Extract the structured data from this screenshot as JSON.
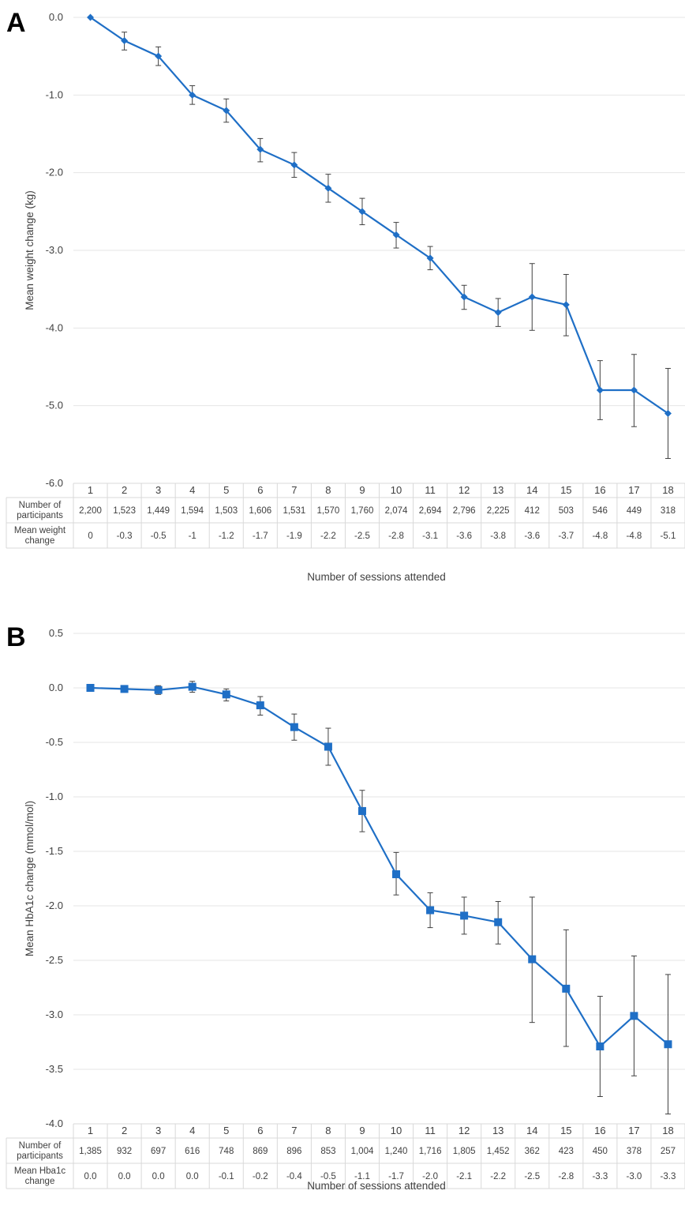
{
  "chart_data": [
    {
      "type": "line",
      "panel_label": "A",
      "ylabel": "Mean weight change (kg)",
      "xlabel": "Number of sessions attended",
      "ylim": [
        -6.0,
        0.0
      ],
      "y_ticks": [
        "0.0",
        "-1.0",
        "-2.0",
        "-3.0",
        "-4.0",
        "-5.0",
        "-6.0"
      ],
      "grid": true,
      "marker": "diamond",
      "color": "#1f6fc6",
      "categories": [
        "1",
        "2",
        "3",
        "4",
        "5",
        "6",
        "7",
        "8",
        "9",
        "10",
        "11",
        "12",
        "13",
        "14",
        "15",
        "16",
        "17",
        "18"
      ],
      "values": [
        0,
        -0.3,
        -0.5,
        -1.0,
        -1.2,
        -1.7,
        -1.9,
        -2.2,
        -2.5,
        -2.8,
        -3.1,
        -3.6,
        -3.8,
        -3.6,
        -3.7,
        -4.8,
        -4.8,
        -5.1
      ],
      "error_low": [
        0,
        -0.42,
        -0.62,
        -1.12,
        -1.35,
        -1.86,
        -2.06,
        -2.38,
        -2.67,
        -2.97,
        -3.25,
        -3.76,
        -3.98,
        -4.03,
        -4.1,
        -5.18,
        -5.27,
        -5.68
      ],
      "error_high": [
        0,
        -0.19,
        -0.38,
        -0.88,
        -1.05,
        -1.56,
        -1.74,
        -2.02,
        -2.33,
        -2.64,
        -2.95,
        -3.45,
        -3.62,
        -3.17,
        -3.31,
        -4.42,
        -4.34,
        -4.52
      ],
      "table": {
        "row1_label": [
          "Number of",
          "participants"
        ],
        "row1": [
          "2,200",
          "1,523",
          "1,449",
          "1,594",
          "1,503",
          "1,606",
          "1,531",
          "1,570",
          "1,760",
          "2,074",
          "2,694",
          "2,796",
          "2,225",
          "412",
          "503",
          "546",
          "449",
          "318"
        ],
        "row2_label": [
          "Mean weight",
          "change"
        ],
        "row2": [
          "0",
          "-0.3",
          "-0.5",
          "-1",
          "-1.2",
          "-1.7",
          "-1.9",
          "-2.2",
          "-2.5",
          "-2.8",
          "-3.1",
          "-3.6",
          "-3.8",
          "-3.6",
          "-3.7",
          "-4.8",
          "-4.8",
          "-5.1"
        ]
      }
    },
    {
      "type": "line",
      "panel_label": "B",
      "ylabel": "Mean HbA1c change (mmol/mol)",
      "xlabel": "Number of sessions attended",
      "ylim": [
        -4.0,
        0.5
      ],
      "y_ticks": [
        "0.5",
        "0.0",
        "-0.5",
        "-1.0",
        "-1.5",
        "-2.0",
        "-2.5",
        "-3.0",
        "-3.5",
        "-4.0"
      ],
      "grid": true,
      "marker": "square",
      "color": "#1f6fc6",
      "categories": [
        "1",
        "2",
        "3",
        "4",
        "5",
        "6",
        "7",
        "8",
        "9",
        "10",
        "11",
        "12",
        "13",
        "14",
        "15",
        "16",
        "17",
        "18"
      ],
      "values": [
        0.0,
        -0.01,
        -0.02,
        0.01,
        -0.06,
        -0.16,
        -0.36,
        -0.54,
        -1.13,
        -1.71,
        -2.04,
        -2.09,
        -2.15,
        -2.49,
        -2.76,
        -3.29,
        -3.01,
        -3.27
      ],
      "error_low": [
        0.0,
        -0.04,
        -0.06,
        -0.04,
        -0.12,
        -0.25,
        -0.48,
        -0.71,
        -1.32,
        -1.9,
        -2.2,
        -2.26,
        -2.35,
        -3.07,
        -3.29,
        -3.75,
        -3.56,
        -3.91
      ],
      "error_high": [
        0.0,
        0.02,
        0.02,
        0.06,
        -0.01,
        -0.08,
        -0.24,
        -0.37,
        -0.94,
        -1.51,
        -1.88,
        -1.92,
        -1.96,
        -1.92,
        -2.22,
        -2.83,
        -2.46,
        -2.63
      ],
      "table": {
        "row1_label": [
          "Number of",
          "participants"
        ],
        "row1": [
          "1,385",
          "932",
          "697",
          "616",
          "748",
          "869",
          "896",
          "853",
          "1,004",
          "1,240",
          "1,716",
          "1,805",
          "1,452",
          "362",
          "423",
          "450",
          "378",
          "257"
        ],
        "row2_label": [
          "Mean Hba1c",
          "change"
        ],
        "row2": [
          "0.0",
          "0.0",
          "0.0",
          "0.0",
          "-0.1",
          "-0.2",
          "-0.4",
          "-0.5",
          "-1.1",
          "-1.7",
          "-2.0",
          "-2.1",
          "-2.2",
          "-2.5",
          "-2.8",
          "-3.3",
          "-3.0",
          "-3.3"
        ]
      }
    }
  ]
}
